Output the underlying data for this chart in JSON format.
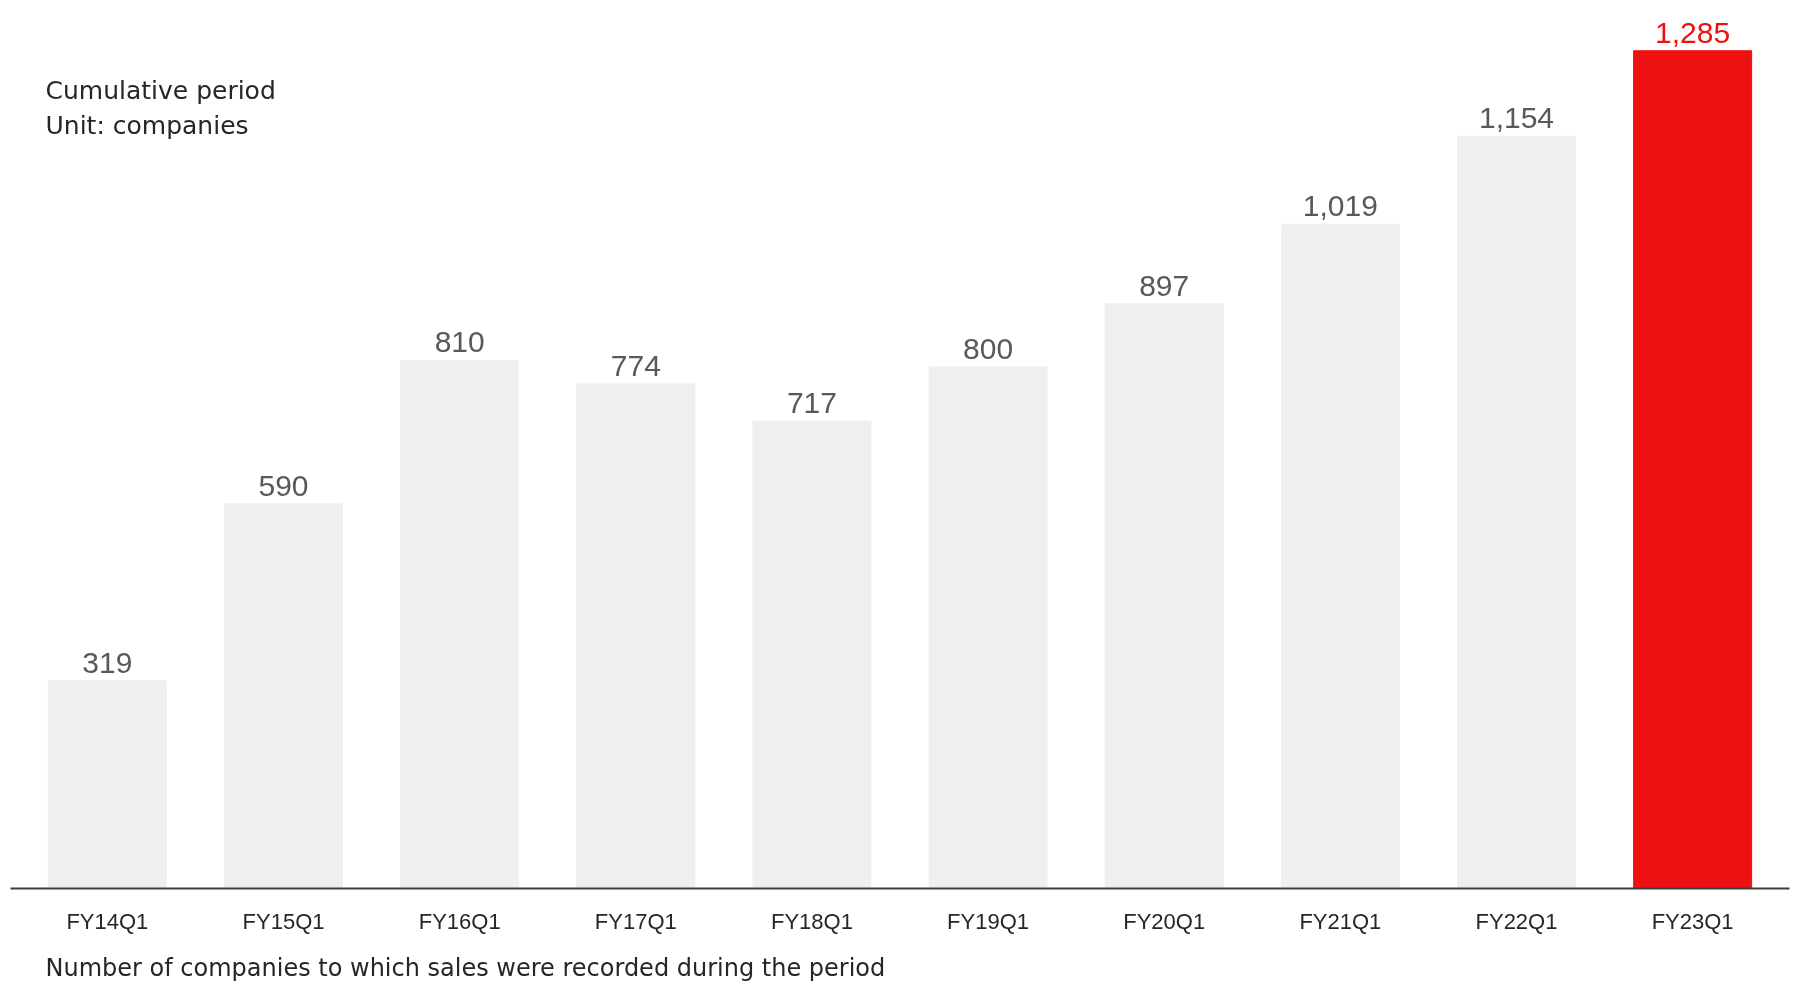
{
  "chart_data": {
    "type": "bar",
    "categories": [
      "FY14Q1",
      "FY15Q1",
      "FY16Q1",
      "FY17Q1",
      "FY18Q1",
      "FY19Q1",
      "FY20Q1",
      "FY21Q1",
      "FY22Q1",
      "FY23Q1"
    ],
    "values": [
      319,
      590,
      810,
      774,
      717,
      800,
      897,
      1019,
      1154,
      1285
    ],
    "colors": [
      "#efefef",
      "#efefef",
      "#efefef",
      "#efefef",
      "#efefef",
      "#efefef",
      "#efefef",
      "#efefef",
      "#efefef",
      "#ee1111"
    ],
    "value_labels": [
      "319",
      "590",
      "810",
      "774",
      "717",
      "800",
      "897",
      "1,019",
      "1,154",
      "1,285"
    ],
    "annotations": [
      "Cumulative period\nUnit: companies",
      "Number of companies to which sales were recorded during the period"
    ],
    "grid": false
  }
}
